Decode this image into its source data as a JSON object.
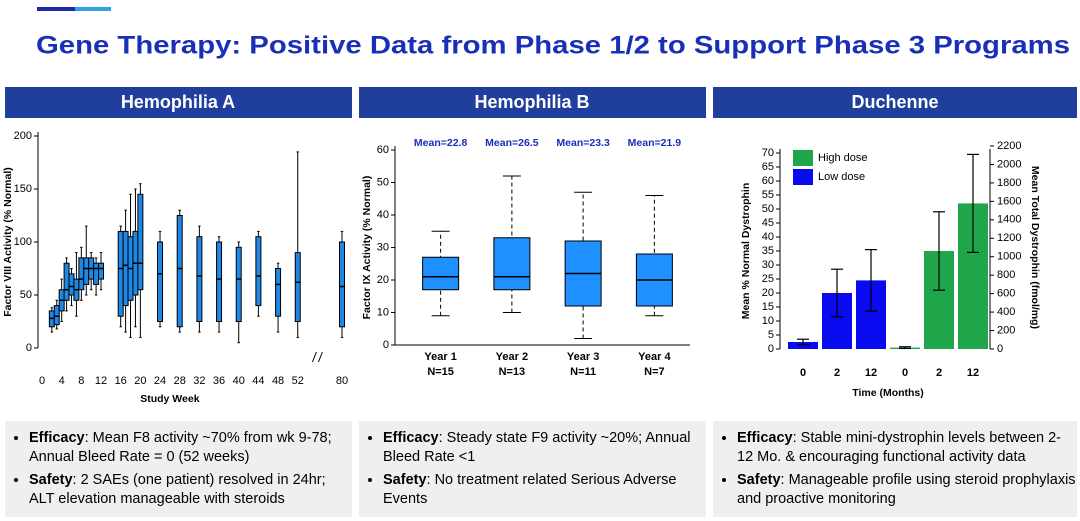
{
  "header": {
    "title": "Gene Therapy: Positive Data from Phase 1/2 to Support Phase 3 Programs"
  },
  "panels": [
    {
      "title": "Hemophilia A",
      "bullets": [
        {
          "label": "Efficacy",
          "text": ": Mean F8 activity ~70% from wk 9-78; Annual Bleed Rate = 0 (52 weeks)"
        },
        {
          "label": "Safety",
          "text": ": 2 SAEs (one patient) resolved in 24hr; ALT elevation manageable with steroids"
        }
      ]
    },
    {
      "title": "Hemophilia B",
      "bullets": [
        {
          "label": "Efficacy",
          "text": ": Steady state F9 activity ~20%; Annual Bleed Rate <1"
        },
        {
          "label": "Safety",
          "text": ": No treatment related Serious Adverse Events"
        }
      ]
    },
    {
      "title": "Duchenne",
      "bullets": [
        {
          "label": "Efficacy",
          "text": ": Stable mini-dystrophin levels between 2-12 Mo. & encouraging functional activity data"
        },
        {
          "label": "Safety",
          "text": ": Manageable profile using steroid prophylaxis and proactive monitoring"
        }
      ]
    }
  ],
  "chart_data": [
    {
      "type": "box",
      "x_label": "Study Week",
      "y_label": "Factor VIII Activity (% Normal)",
      "xlim": [
        0,
        80
      ],
      "xticks": [
        0,
        4,
        8,
        12,
        16,
        20,
        24,
        28,
        32,
        36,
        40,
        44,
        48,
        52,
        80
      ],
      "x_break": [
        56,
        75
      ],
      "ylim": [
        0,
        200
      ],
      "yticks": [
        0,
        50,
        100,
        150,
        200
      ],
      "color": "#1e88e5",
      "boxes": {
        "x": [
          2,
          3,
          4,
          5,
          6,
          7,
          8,
          9,
          10,
          11,
          12,
          16,
          17,
          18,
          19,
          20,
          24,
          28,
          32,
          36,
          40,
          44,
          48,
          52,
          80
        ],
        "min": [
          15,
          18,
          25,
          35,
          40,
          30,
          45,
          50,
          55,
          50,
          55,
          20,
          15,
          10,
          20,
          10,
          20,
          15,
          15,
          15,
          5,
          30,
          15,
          10,
          10
        ],
        "q1": [
          20,
          22,
          35,
          45,
          50,
          45,
          55,
          60,
          65,
          60,
          65,
          30,
          40,
          45,
          50,
          55,
          25,
          20,
          25,
          25,
          25,
          40,
          30,
          25,
          20
        ],
        "median": [
          28,
          30,
          45,
          55,
          58,
          55,
          65,
          75,
          75,
          75,
          75,
          75,
          78,
          75,
          80,
          80,
          70,
          75,
          68,
          65,
          65,
          68,
          60,
          62,
          58
        ],
        "q3": [
          35,
          40,
          55,
          80,
          70,
          65,
          85,
          85,
          85,
          80,
          80,
          110,
          110,
          105,
          110,
          145,
          100,
          125,
          105,
          100,
          95,
          105,
          75,
          90,
          100
        ],
        "max": [
          38,
          45,
          65,
          85,
          75,
          90,
          95,
          115,
          90,
          85,
          90,
          115,
          130,
          145,
          150,
          155,
          110,
          130,
          115,
          105,
          100,
          110,
          80,
          185,
          110
        ]
      }
    },
    {
      "type": "box",
      "y_label": "Factor IX Activity (% Normal)",
      "categories": [
        "Year 1",
        "Year 2",
        "Year 3",
        "Year 4"
      ],
      "n_labels": [
        "N=15",
        "N=13",
        "N=11",
        "N=7"
      ],
      "annotations": [
        "Mean=22.8",
        "Mean=26.5",
        "Mean=23.3",
        "Mean=21.9"
      ],
      "ylim": [
        0,
        60
      ],
      "yticks": [
        0,
        10,
        20,
        30,
        40,
        50,
        60
      ],
      "color": "#1e90ff",
      "boxes": {
        "min": [
          9,
          10,
          2,
          9
        ],
        "q1": [
          17,
          17,
          12,
          12
        ],
        "median": [
          21,
          21,
          22,
          20
        ],
        "q3": [
          27,
          33,
          32,
          28
        ],
        "max": [
          35,
          52,
          47,
          46
        ]
      }
    },
    {
      "type": "bar",
      "x_label": "Time (Months)",
      "y_label": "Mean % Normal Dystrophin",
      "y2_label": "Mean Total Dystrophin (fmol/mg)",
      "categories": [
        "0",
        "2",
        "12"
      ],
      "legend": "top-left",
      "ylim": [
        0,
        70
      ],
      "yticks": [
        0,
        5,
        10,
        15,
        20,
        25,
        30,
        35,
        40,
        45,
        50,
        55,
        60,
        65,
        70
      ],
      "y2lim": [
        0,
        2200
      ],
      "y2ticks": [
        0,
        200,
        400,
        600,
        800,
        1000,
        1200,
        1400,
        1600,
        1800,
        2000,
        2200
      ],
      "series": [
        {
          "name": "Low dose",
          "color": "#0a0af0",
          "values": [
            2.5,
            20,
            24.5
          ],
          "errors": [
            1,
            8.5,
            11
          ]
        },
        {
          "name": "High dose",
          "color": "#1fa64a",
          "values": [
            0.5,
            35,
            52
          ],
          "errors": [
            0.3,
            14,
            17.5
          ]
        }
      ]
    }
  ]
}
